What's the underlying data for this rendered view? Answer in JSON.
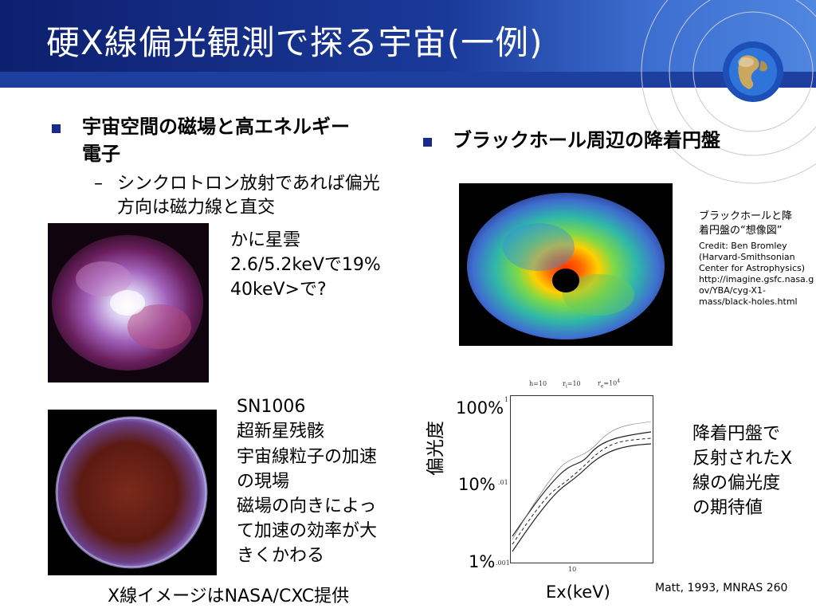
{
  "slide": {
    "title": "硬X線偏光観測で探る宇宙(一例)",
    "left": {
      "bullet_line1": "宇宙空間の磁場と高エネルギー",
      "bullet_line2": "電子",
      "sub_dash": "–",
      "sub_line1": "シンクロトロン放射であれば偏光",
      "sub_line2": "方向は磁力線と直交",
      "crab": {
        "line1": "かに星雲",
        "line2": "2.6/5.2keVで19%",
        "line3": "40keV>で?"
      },
      "sn1006": {
        "line1": "SN1006",
        "line2": "超新星残骸",
        "line3": "宇宙線粒子の加速",
        "line4": "の現場",
        "line5": "磁場の向きによっ",
        "line6": "て加速の効率が大",
        "line7": "きくかわる"
      },
      "footer": "X線イメージはNASA/CXC提供"
    },
    "right": {
      "bullet": "ブラックホール周辺の降着円盤",
      "image_caption": {
        "line1": "ブラックホールと降",
        "line2": "着円盤の“想像図”",
        "line3": "Credit: Ben Bromley",
        "line4": "(Harvard-Smithsonian",
        "line5": "Center for Astrophysics)",
        "line6": "http://imagine.gsfc.nasa.g",
        "line7": "ov/YBA/cyg-X1-",
        "line8": "mass/black-holes.html"
      },
      "plot": {
        "ylabel": "偏光度",
        "y100": "100%",
        "y10": "10%",
        "y1": "1%",
        "xlabel": "Ex(keV)",
        "inner_ytick_1": "1",
        "inner_ytick_01": ".01",
        "inner_ytick_001": ".001",
        "inner_xtick_10": "10",
        "param_h": "h=10",
        "param_r": "r",
        "param_r_sub": "i",
        "param_r_val": "=10",
        "param_re": "r",
        "param_re_sub": "e",
        "param_re_val": "=10",
        "param_re_sup": "4"
      },
      "plot_note": {
        "line1": "降着円盤で",
        "line2": "反射されたX",
        "line3": "線の偏光度",
        "line4": "の期待値"
      },
      "reference": "Matt, 1993, MNRAS 260"
    }
  },
  "colors": {
    "header": "#1a3a9a",
    "bullet": "#1a2a8c"
  }
}
